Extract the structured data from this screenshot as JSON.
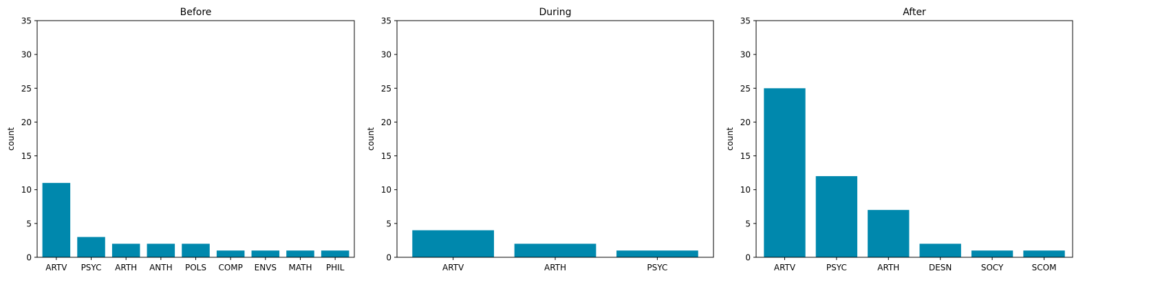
{
  "colors": {
    "bar": "#0088ad",
    "axis": "#000000",
    "text": "#000000",
    "background": "#ffffff"
  },
  "chart_data": [
    {
      "type": "bar",
      "title": "Before",
      "xlabel": "",
      "ylabel": "count",
      "ylim": [
        0,
        35
      ],
      "yticks": [
        0,
        5,
        10,
        15,
        20,
        25,
        30,
        35
      ],
      "grid": false,
      "categories": [
        "ARTV",
        "PSYC",
        "ARTH",
        "ANTH",
        "POLS",
        "COMP",
        "ENVS",
        "MATH",
        "PHIL"
      ],
      "values": [
        11,
        3,
        2,
        2,
        2,
        1,
        1,
        1,
        1
      ]
    },
    {
      "type": "bar",
      "title": "During",
      "xlabel": "",
      "ylabel": "count",
      "ylim": [
        0,
        35
      ],
      "yticks": [
        0,
        5,
        10,
        15,
        20,
        25,
        30,
        35
      ],
      "grid": false,
      "categories": [
        "ARTV",
        "ARTH",
        "PSYC"
      ],
      "values": [
        4,
        2,
        1
      ]
    },
    {
      "type": "bar",
      "title": "After",
      "xlabel": "",
      "ylabel": "count",
      "ylim": [
        0,
        35
      ],
      "yticks": [
        0,
        5,
        10,
        15,
        20,
        25,
        30,
        35
      ],
      "grid": false,
      "categories": [
        "ARTV",
        "PSYC",
        "ARTH",
        "DESN",
        "SOCY",
        "SCOM"
      ],
      "values": [
        25,
        12,
        7,
        2,
        1,
        1
      ]
    }
  ]
}
